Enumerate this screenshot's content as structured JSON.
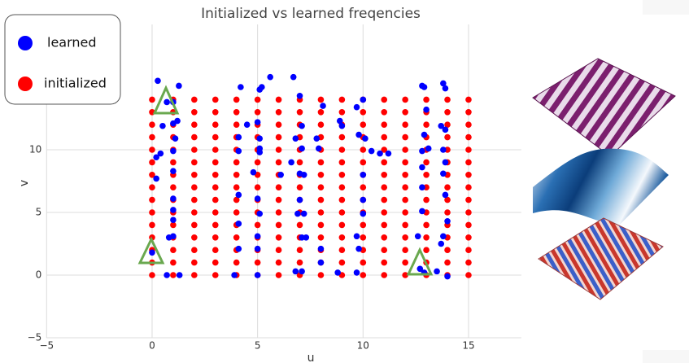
{
  "chart_data": {
    "type": "scatter",
    "title": "Initialized vs learned freqencies",
    "x_label": "u",
    "y_label": "v",
    "xlim": [
      -5,
      17.5
    ],
    "ylim": [
      -5,
      20
    ],
    "xticks": [
      {
        "value": -5,
        "label": "−5"
      },
      0,
      5,
      10,
      15
    ],
    "yticks": [
      {
        "value": -5,
        "label": "−5"
      },
      0,
      5,
      10
    ],
    "grid": true,
    "legend": "upper left",
    "series": [
      {
        "name": "learned",
        "color": "#0000ff",
        "x": [
          0.27,
          1.27,
          0.7,
          1.0,
          0.5,
          1,
          1.2,
          1.1,
          0.4,
          0.2,
          1,
          0.2,
          1,
          1,
          1,
          1,
          1,
          0.8,
          0,
          0.7,
          1.3,
          4.2,
          5.1,
          5.2,
          4.5,
          5,
          4.1,
          5.1,
          4.1,
          5.1,
          5.1,
          4.8,
          4.1,
          5,
          5.1,
          4.1,
          5,
          5,
          4.1,
          3.9,
          5,
          5.6,
          7,
          6.7,
          7.1,
          6.8,
          7.1,
          7.8,
          7.9,
          6.6,
          7,
          7.2,
          6.1,
          7,
          7.2,
          6.9,
          7.1,
          7.3,
          8,
          8,
          6.8,
          7.1,
          8.1,
          8.9,
          9,
          9.7,
          10,
          9.8,
          10.1,
          10.4,
          10.8,
          11.2,
          10,
          10,
          9.7,
          9.8,
          10,
          9.7,
          8.8,
          12.8,
          12.9,
          13.8,
          13.9,
          13,
          13.7,
          13.9,
          12.9,
          13.1,
          12.8,
          13.8,
          13.9,
          12.8,
          13.8,
          12.8,
          13.9,
          12.8,
          14,
          13.8,
          13.7,
          12.6,
          12.7,
          12.9,
          13.5,
          14
        ],
        "y": [
          15.5,
          15.1,
          13.8,
          13.8,
          11.9,
          12.1,
          12.3,
          10.9,
          9.7,
          9.4,
          9.9,
          7.7,
          8.3,
          6.1,
          5.2,
          4.4,
          3.1,
          3,
          1.8,
          0,
          0,
          15,
          14.8,
          15,
          12,
          12.2,
          11,
          10.9,
          9.9,
          10.1,
          9.8,
          8.2,
          6.4,
          6.1,
          4.9,
          4.1,
          3.1,
          2.1,
          2.1,
          0,
          0,
          15.8,
          14.3,
          15.8,
          11.9,
          10.9,
          10.1,
          10.9,
          10.1,
          9,
          8.1,
          8,
          8,
          6,
          4.9,
          4.9,
          3,
          3,
          2.1,
          1,
          0.3,
          0.3,
          13.5,
          12.3,
          11.9,
          13.4,
          14,
          11.2,
          10.9,
          9.9,
          9.7,
          9.7,
          8,
          6,
          3.1,
          2.1,
          4.9,
          0.2,
          0.2,
          15.1,
          15,
          15.3,
          14.9,
          13.2,
          11.9,
          11.6,
          11.2,
          10.1,
          9.9,
          10,
          9,
          8.6,
          8.1,
          7,
          6.4,
          5.1,
          4.3,
          3.1,
          2.5,
          3.1,
          0.5,
          0.2,
          0.3,
          -0.1
        ]
      },
      {
        "name": "initialized",
        "color": "#ff0000",
        "x": [
          0,
          0,
          0,
          0,
          0,
          0,
          0,
          0,
          0,
          0,
          0,
          0,
          0,
          0,
          0,
          1,
          1,
          1,
          1,
          1,
          1,
          1,
          1,
          1,
          1,
          1,
          1,
          1,
          1,
          1,
          2,
          2,
          2,
          2,
          2,
          2,
          2,
          2,
          2,
          2,
          2,
          2,
          2,
          2,
          2,
          3,
          3,
          3,
          3,
          3,
          3,
          3,
          3,
          3,
          3,
          3,
          3,
          3,
          3,
          3,
          4,
          4,
          4,
          4,
          4,
          4,
          4,
          4,
          4,
          4,
          4,
          4,
          4,
          4,
          4,
          5,
          5,
          5,
          5,
          5,
          5,
          5,
          5,
          5,
          5,
          5,
          5,
          5,
          5,
          5,
          6,
          6,
          6,
          6,
          6,
          6,
          6,
          6,
          6,
          6,
          6,
          6,
          6,
          6,
          6,
          7,
          7,
          7,
          7,
          7,
          7,
          7,
          7,
          7,
          7,
          7,
          7,
          7,
          7,
          7,
          8,
          8,
          8,
          8,
          8,
          8,
          8,
          8,
          8,
          8,
          8,
          8,
          8,
          8,
          8,
          9,
          9,
          9,
          9,
          9,
          9,
          9,
          9,
          9,
          9,
          9,
          9,
          9,
          9,
          9,
          10,
          10,
          10,
          10,
          10,
          10,
          10,
          10,
          10,
          10,
          10,
          10,
          10,
          10,
          10,
          11,
          11,
          11,
          11,
          11,
          11,
          11,
          11,
          11,
          11,
          11,
          11,
          11,
          11,
          11,
          12,
          12,
          12,
          12,
          12,
          12,
          12,
          12,
          12,
          12,
          12,
          12,
          12,
          12,
          12,
          13,
          13,
          13,
          13,
          13,
          13,
          13,
          13,
          13,
          13,
          13,
          13,
          13,
          13,
          13,
          14,
          14,
          14,
          14,
          14,
          14,
          14,
          14,
          14,
          14,
          14,
          14,
          14,
          14,
          14,
          15,
          15,
          15,
          15,
          15,
          15,
          15,
          15,
          15,
          15,
          15,
          15,
          15,
          15,
          15
        ],
        "y": [
          0,
          1,
          2,
          3,
          4,
          5,
          6,
          7,
          8,
          9,
          10,
          11,
          12,
          13,
          14,
          0,
          1,
          2,
          3,
          4,
          5,
          6,
          7,
          8,
          9,
          10,
          11,
          12,
          13,
          14,
          0,
          1,
          2,
          3,
          4,
          5,
          6,
          7,
          8,
          9,
          10,
          11,
          12,
          13,
          14,
          0,
          1,
          2,
          3,
          4,
          5,
          6,
          7,
          8,
          9,
          10,
          11,
          12,
          13,
          14,
          0,
          1,
          2,
          3,
          4,
          5,
          6,
          7,
          8,
          9,
          10,
          11,
          12,
          13,
          14,
          0,
          1,
          2,
          3,
          4,
          5,
          6,
          7,
          8,
          9,
          10,
          11,
          12,
          13,
          14,
          0,
          1,
          2,
          3,
          4,
          5,
          6,
          7,
          8,
          9,
          10,
          11,
          12,
          13,
          14,
          0,
          1,
          2,
          3,
          4,
          5,
          6,
          7,
          8,
          9,
          10,
          11,
          12,
          13,
          14,
          0,
          1,
          2,
          3,
          4,
          5,
          6,
          7,
          8,
          9,
          10,
          11,
          12,
          13,
          14,
          0,
          1,
          2,
          3,
          4,
          5,
          6,
          7,
          8,
          9,
          10,
          11,
          12,
          13,
          14,
          0,
          1,
          2,
          3,
          4,
          5,
          6,
          7,
          8,
          9,
          10,
          11,
          12,
          13,
          14,
          0,
          1,
          2,
          3,
          4,
          5,
          6,
          7,
          8,
          9,
          10,
          11,
          12,
          13,
          14,
          0,
          1,
          2,
          3,
          4,
          5,
          6,
          7,
          8,
          9,
          10,
          11,
          12,
          13,
          14,
          0,
          1,
          2,
          3,
          4,
          5,
          6,
          7,
          8,
          9,
          10,
          11,
          12,
          13,
          14,
          0,
          1,
          2,
          3,
          4,
          5,
          6,
          7,
          8,
          9,
          10,
          11,
          12,
          13,
          14,
          0,
          1,
          2,
          3,
          4,
          5,
          6,
          7,
          8,
          9,
          10,
          11,
          12,
          13,
          14
        ]
      }
    ]
  }
}
